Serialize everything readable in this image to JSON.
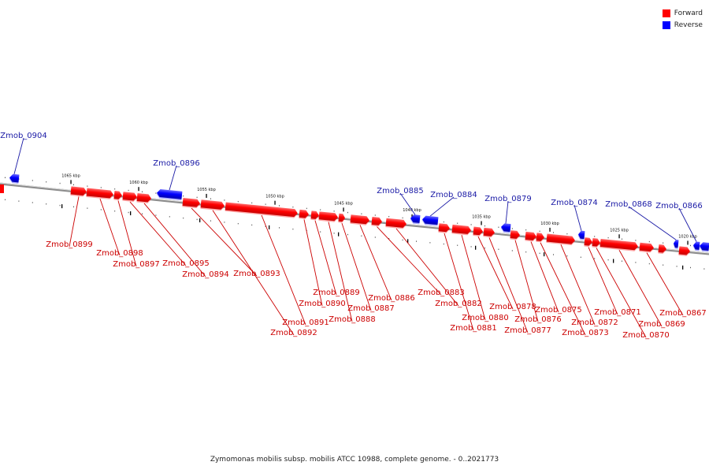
{
  "legend": {
    "items": [
      {
        "label": "Forward",
        "color": "#ff0000"
      },
      {
        "label": "Reverse",
        "color": "#0000ff"
      }
    ]
  },
  "caption": "Zymomonas mobilis subsp. mobilis ATCC 10988, complete genome. - 0..2021773",
  "colors": {
    "forward": "#ff0000",
    "forward_label": "#cc0000",
    "reverse": "#0000ff",
    "reverse_label": "#1a1aa6",
    "backbone": "#8c8c8c"
  },
  "scale": {
    "ticks": [
      "1065 kbp",
      "1060 kbp",
      "1055 kbp",
      "1050 kbp",
      "1045 kbp",
      "1040 kbp",
      "1035 kbp",
      "1030 kbp",
      "1025 kbp",
      "1020 kbp"
    ]
  },
  "genes": {
    "reverse": [
      "Zmob_0904",
      "Zmob_0896",
      "Zmob_0885",
      "Zmob_0884",
      "Zmob_0879",
      "Zmob_0874",
      "Zmob_0868",
      "Zmob_0866"
    ],
    "forward": [
      "Zmob_0899",
      "Zmob_0898",
      "Zmob_0897",
      "Zmob_0895",
      "Zmob_0894",
      "Zmob_0893",
      "Zmob_0892",
      "Zmob_0891",
      "Zmob_0890",
      "Zmob_0889",
      "Zmob_0888",
      "Zmob_0887",
      "Zmob_0886",
      "Zmob_0883",
      "Zmob_0882",
      "Zmob_0881",
      "Zmob_0880",
      "Zmob_0878",
      "Zmob_0877",
      "Zmob_0876",
      "Zmob_0875",
      "Zmob_0873",
      "Zmob_0872",
      "Zmob_0871",
      "Zmob_0870",
      "Zmob_0869",
      "Zmob_0867"
    ]
  }
}
